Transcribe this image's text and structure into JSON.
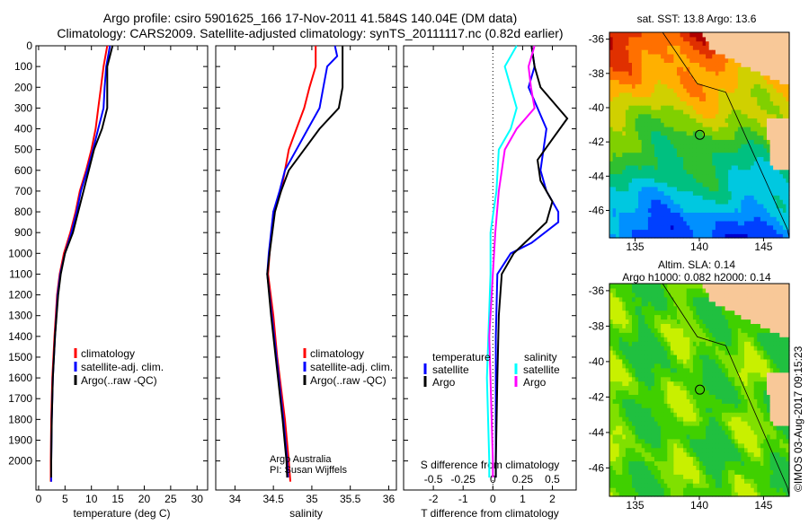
{
  "title_line1": "Argo profile: csiro 5901625_166 17-Nov-2011 41.584S 140.04E (DM data)",
  "title_line2": "Climatology: CARS2009. Satellite-adjusted climatology: synTS_20111117.nc (0.82d earlier)",
  "credit": "©IMOS 03-Aug-2017 09:15:23",
  "colors": {
    "clim": "#ff0000",
    "sat": "#0000ff",
    "argo": "#000000",
    "sal_sat": "#00ffff",
    "sal_argo": "#ff00ff"
  },
  "chart_data": [
    {
      "type": "line",
      "name": "temperature-profile",
      "xlabel": "temperature (deg C)",
      "ylabel": "",
      "xlim": [
        -0.5,
        32
      ],
      "ylim": [
        0,
        2140
      ],
      "yreversed": true,
      "xticks": [
        0,
        5,
        10,
        15,
        20,
        25,
        30
      ],
      "yticks": [
        0,
        100,
        200,
        300,
        400,
        500,
        600,
        700,
        800,
        900,
        1000,
        1100,
        1200,
        1300,
        1400,
        1500,
        1600,
        1700,
        1800,
        1900,
        2000
      ],
      "legend": [
        "climatology",
        "satellite-adj. clim.",
        "Argo(..raw -QC)"
      ],
      "legend_position": "lower-center",
      "series": [
        {
          "name": "climatology",
          "color_key": "clim",
          "depth": [
            0,
            100,
            200,
            300,
            400,
            500,
            600,
            700,
            800,
            900,
            1000,
            1100,
            1200,
            1400,
            1600,
            1800,
            2000,
            2100
          ],
          "values": [
            13,
            12.3,
            11.8,
            11.3,
            10.8,
            10,
            9,
            7.8,
            7,
            6,
            4.8,
            4,
            3.5,
            3,
            2.6,
            2.4,
            2.3,
            2.3
          ]
        },
        {
          "name": "satellite-adj. clim.",
          "color_key": "sat",
          "depth": [
            0,
            100,
            200,
            300,
            400,
            500,
            600,
            700,
            800,
            900,
            1000,
            1100,
            1200,
            1400,
            1600,
            1800,
            2000,
            2100
          ],
          "values": [
            13.5,
            12.8,
            12.5,
            12.3,
            11.3,
            10.3,
            9.2,
            8,
            7.2,
            6.2,
            5,
            4.1,
            3.6,
            3.1,
            2.7,
            2.5,
            2.4,
            2.4
          ]
        },
        {
          "name": "Argo(..raw -QC)",
          "color_key": "argo",
          "depth": [
            0,
            100,
            200,
            300,
            400,
            500,
            600,
            700,
            800,
            900,
            1000,
            1100,
            1200,
            1400,
            1600,
            1800,
            2000,
            2080
          ],
          "values": [
            14,
            13,
            13,
            13,
            12,
            10.5,
            9.5,
            8.5,
            7.5,
            6.5,
            5,
            4.2,
            3.7,
            3.1,
            2.7,
            2.5,
            2.4,
            2.4
          ]
        }
      ]
    },
    {
      "type": "line",
      "name": "salinity-profile",
      "xlabel": "salinity",
      "xlim": [
        33.75,
        36.1
      ],
      "ylim": [
        0,
        2140
      ],
      "yreversed": true,
      "xticks": [
        34,
        34.5,
        35,
        35.5,
        36
      ],
      "legend": [
        "climatology",
        "satellite-adj. clim.",
        "Argo(..raw -QC)"
      ],
      "legend_position": "lower-right",
      "annotation": [
        "Argo Australia",
        "PI: Susan Wijffels"
      ],
      "series": [
        {
          "name": "climatology",
          "color_key": "clim",
          "depth": [
            0,
            100,
            200,
            300,
            400,
            500,
            600,
            700,
            800,
            1000,
            1100,
            1300,
            1500,
            1800,
            2000,
            2100
          ],
          "values": [
            35.05,
            35.05,
            34.97,
            34.9,
            34.8,
            34.7,
            34.65,
            34.6,
            34.5,
            34.45,
            34.43,
            34.5,
            34.55,
            34.65,
            34.7,
            34.72
          ]
        },
        {
          "name": "satellite-adj. clim.",
          "color_key": "sat",
          "depth": [
            0,
            50,
            100,
            200,
            300,
            400,
            500,
            600,
            700,
            800,
            1000,
            1100,
            1300,
            1500,
            1800,
            2000,
            2080
          ],
          "values": [
            35.3,
            35.33,
            35.2,
            35.15,
            35.1,
            34.95,
            34.8,
            34.65,
            34.58,
            34.5,
            34.44,
            34.42,
            34.48,
            34.54,
            34.63,
            34.68,
            34.69
          ]
        },
        {
          "name": "Argo(..raw -QC)",
          "color_key": "argo",
          "depth": [
            0,
            100,
            200,
            300,
            400,
            500,
            600,
            700,
            800,
            1000,
            1100,
            1300,
            1500,
            1800,
            2000,
            2080
          ],
          "values": [
            35.4,
            35.4,
            35.4,
            35.35,
            35.1,
            34.9,
            34.7,
            34.6,
            34.52,
            34.45,
            34.42,
            34.47,
            34.53,
            34.62,
            34.67,
            34.68
          ]
        }
      ]
    },
    {
      "type": "line",
      "name": "difference-profile",
      "xlabel": "T difference from climatology",
      "xlabel_top": "S difference from climatology",
      "xlim": [
        -3,
        2.8
      ],
      "s_xlim": [
        -0.75,
        0.7
      ],
      "ylim": [
        0,
        2140
      ],
      "yreversed": true,
      "xticks": [
        -2,
        -1,
        0,
        1,
        2
      ],
      "s_xticks": [
        -0.5,
        -0.25,
        0,
        0.25,
        0.5
      ],
      "s_xtick_labels": [
        "-0.5",
        "-0.25",
        "0",
        "0.25",
        "0.5"
      ],
      "legend_temperature": {
        "title": "temperature",
        "items": [
          "satellite",
          "Argo"
        ]
      },
      "legend_salinity": {
        "title": "salinity",
        "items": [
          "satellite",
          "Argo"
        ]
      },
      "series": [
        {
          "name": "T satellite",
          "axis": "T",
          "color_key": "sat",
          "depth": [
            0,
            100,
            200,
            300,
            400,
            600,
            700,
            800,
            850,
            950,
            1000,
            1100,
            1400,
            1700,
            2000,
            2080
          ],
          "values": [
            1.3,
            1.4,
            1.2,
            1.5,
            1.8,
            1.6,
            1.8,
            2.2,
            2.2,
            1.3,
            0.6,
            0.15,
            0.1,
            0.1,
            0.1,
            0.1
          ]
        },
        {
          "name": "T Argo",
          "axis": "T",
          "color_key": "argo",
          "depth": [
            0,
            100,
            200,
            300,
            350,
            450,
            550,
            650,
            750,
            850,
            1000,
            1100,
            1300,
            1600,
            2000,
            2080
          ],
          "values": [
            1.3,
            1.4,
            1.6,
            2.2,
            2.5,
            2.0,
            1.5,
            1.6,
            2.0,
            1.8,
            0.7,
            0.3,
            0.2,
            0.15,
            0.1,
            0.1
          ]
        },
        {
          "name": "S satellite",
          "axis": "S",
          "color_key": "sal_sat",
          "depth": [
            0,
            100,
            200,
            300,
            400,
            500,
            700,
            900,
            1100,
            1600,
            2000,
            2080
          ],
          "values": [
            0.2,
            0.1,
            0.15,
            0.2,
            0.15,
            0.05,
            0.03,
            -0.02,
            -0.02,
            -0.05,
            -0.03,
            -0.03
          ]
        },
        {
          "name": "S Argo",
          "axis": "S",
          "color_key": "sal_argo",
          "depth": [
            0,
            100,
            200,
            300,
            400,
            500,
            700,
            900,
            1100,
            1400,
            2000,
            2080
          ],
          "values": [
            0.35,
            0.3,
            0.32,
            0.35,
            0.2,
            0.1,
            0.05,
            0.02,
            0,
            -0.03,
            0,
            0
          ]
        }
      ]
    },
    {
      "type": "heatmap",
      "name": "sst-map",
      "title": "sat. SST: 13.8 Argo: 13.6",
      "xlim": [
        133,
        147
      ],
      "ylim": [
        -47.6,
        -35.6
      ],
      "xticks": [
        135,
        140,
        145
      ],
      "yticks": [
        -36,
        -38,
        -40,
        -42,
        -44,
        -46
      ],
      "profile_location": [
        140.04,
        -41.584
      ]
    },
    {
      "type": "heatmap",
      "name": "sla-map",
      "title": "Altim. SLA: 0.14",
      "subtitle": "Argo h1000: 0.082 h2000: 0.14",
      "xlim": [
        133,
        147
      ],
      "ylim": [
        -47.6,
        -35.6
      ],
      "xticks": [
        135,
        140,
        145
      ],
      "yticks": [
        -36,
        -38,
        -40,
        -42,
        -44,
        -46
      ],
      "profile_location": [
        140.04,
        -41.584
      ]
    }
  ]
}
